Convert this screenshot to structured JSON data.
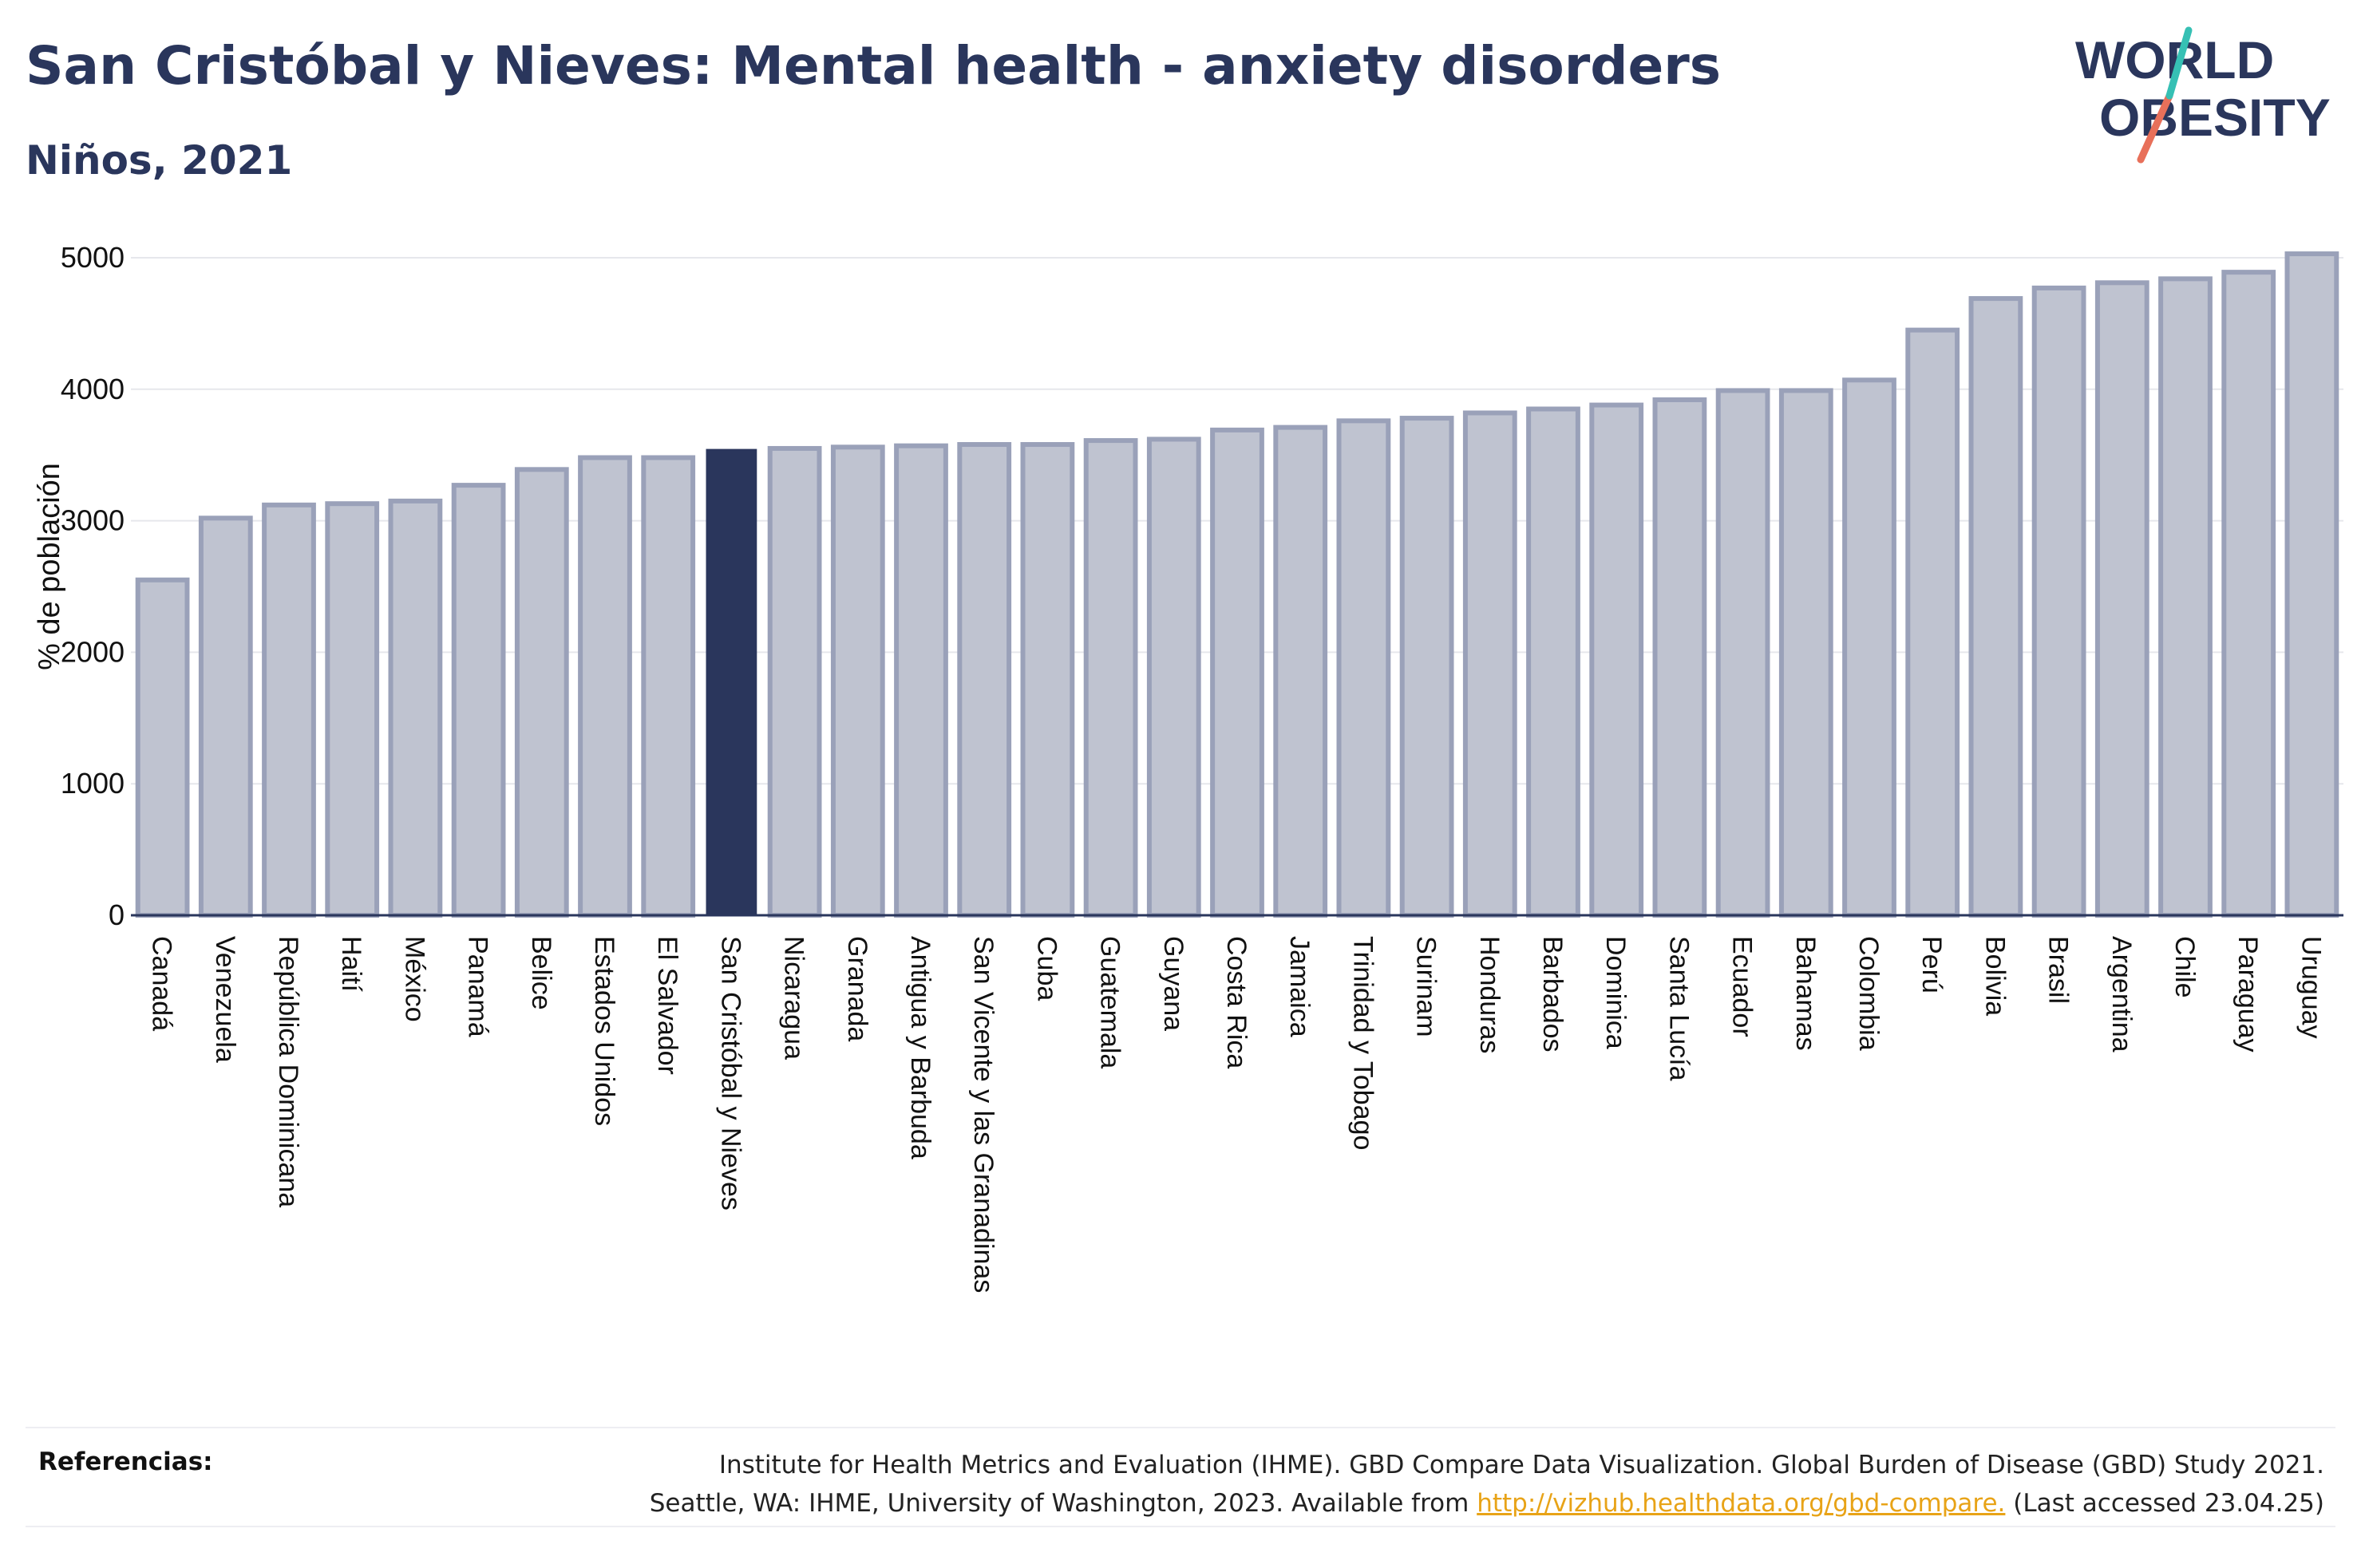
{
  "header": {
    "title": "San Cristóbal y Nieves: Mental health - anxiety disorders",
    "subtitle": "Niños, 2021"
  },
  "logo": {
    "line1": "WORLD",
    "line2": "OBESITY"
  },
  "chart_data": {
    "type": "bar",
    "ylabel": "% de población",
    "xlabel": "",
    "ylim": [
      0,
      5200
    ],
    "yticks": [
      0,
      1000,
      2000,
      3000,
      4000,
      5000
    ],
    "grid": true,
    "highlight": "San Cristóbal y Nieves",
    "colors": {
      "bar": "#bfc3d0",
      "bar_edge": "#9aa1b9",
      "highlight": "#2a365c",
      "grid": "#e6e7ec"
    },
    "categories": [
      "Canadá",
      "Venezuela",
      "República Dominicana",
      "Haití",
      "México",
      "Panamá",
      "Belice",
      "Estados Unidos",
      "El Salvador",
      "San Cristóbal y Nieves",
      "Nicaragua",
      "Granada",
      "Antigua y Barbuda",
      "San Vicente y las Granadinas",
      "Cuba",
      "Guatemala",
      "Guyana",
      "Costa Rica",
      "Jamaica",
      "Trinidad y Tobago",
      "Surinam",
      "Honduras",
      "Barbados",
      "Dominica",
      "Santa Lucía",
      "Ecuador",
      "Bahamas",
      "Colombia",
      "Perú",
      "Bolivia",
      "Brasil",
      "Argentina",
      "Chile",
      "Paraguay",
      "Uruguay"
    ],
    "values": [
      2550,
      3020,
      3120,
      3130,
      3150,
      3270,
      3390,
      3480,
      3480,
      3540,
      3550,
      3560,
      3570,
      3580,
      3580,
      3610,
      3620,
      3690,
      3710,
      3760,
      3780,
      3820,
      3850,
      3880,
      3920,
      3990,
      3990,
      4070,
      4450,
      4690,
      4770,
      4810,
      4840,
      4890,
      5030
    ]
  },
  "footer": {
    "ref_label": "Referencias:",
    "ref_line1": "Institute for Health Metrics and Evaluation (IHME). GBD Compare Data Visualization. Global Burden of Disease (GBD) Study 2021.",
    "ref_line2_pre": "Seattle, WA: IHME, University of Washington, 2023. Available from ",
    "ref_link": "http://vizhub.healthdata.org/gbd-compare.",
    "ref_line2_post": " (Last accessed 23.04.25)"
  }
}
